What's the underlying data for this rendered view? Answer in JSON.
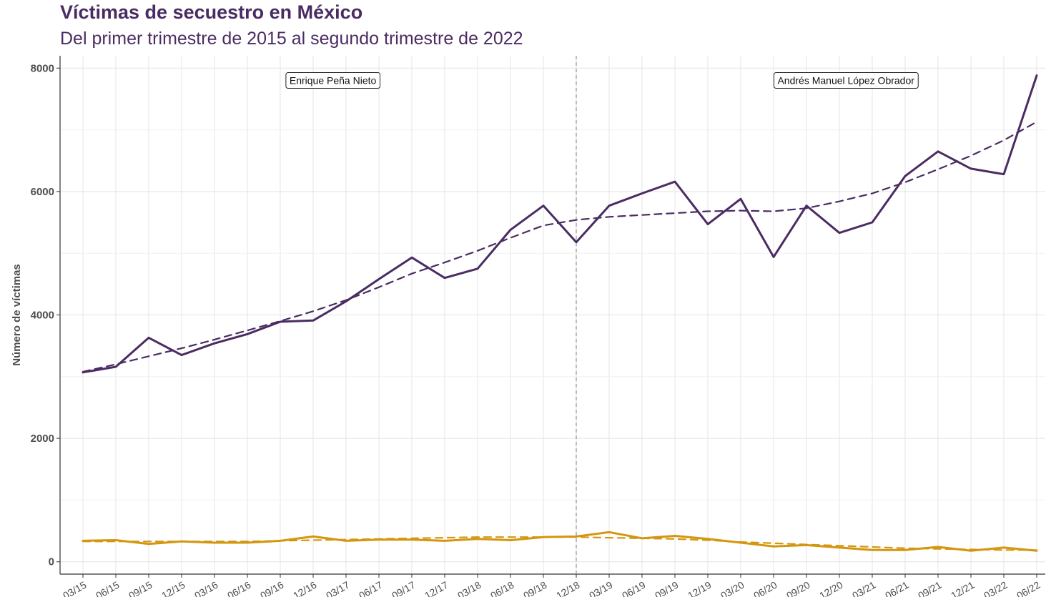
{
  "chart_data": {
    "type": "line",
    "title": "Víctimas de secuestro en México",
    "subtitle": "Del primer trimestre de 2015 al segundo trimestre de 2022",
    "xlabel": "",
    "ylabel": "Número de víctimas",
    "ylim": [
      -200,
      8200
    ],
    "yticks": [
      0,
      2000,
      4000,
      6000,
      8000
    ],
    "grid": true,
    "categories": [
      "03/15",
      "06/15",
      "09/15",
      "12/15",
      "03/16",
      "06/16",
      "09/16",
      "12/16",
      "03/17",
      "06/17",
      "09/17",
      "12/17",
      "03/18",
      "06/18",
      "09/18",
      "12/18",
      "03/19",
      "06/19",
      "09/19",
      "12/19",
      "03/20",
      "06/20",
      "09/20",
      "12/20",
      "03/21",
      "06/21",
      "09/21",
      "12/21",
      "03/22",
      "06/22"
    ],
    "series": [
      {
        "color": "#4a2c62",
        "style": "solid",
        "values": [
          3070,
          3160,
          3630,
          3350,
          3540,
          3690,
          3890,
          3910,
          4220,
          4580,
          4930,
          4600,
          4750,
          5380,
          5770,
          5180,
          5770,
          5970,
          6160,
          5470,
          5880,
          4940,
          5770,
          5330,
          5500,
          6250,
          6650,
          6370,
          6280,
          7880
        ]
      },
      {
        "color": "#4a2c62",
        "style": "dashed",
        "values": [
          3080,
          3200,
          3330,
          3460,
          3600,
          3750,
          3900,
          4060,
          4240,
          4450,
          4670,
          4850,
          5040,
          5250,
          5450,
          5540,
          5590,
          5620,
          5650,
          5680,
          5690,
          5680,
          5730,
          5840,
          5970,
          6150,
          6360,
          6580,
          6830,
          7130
        ]
      },
      {
        "color": "#d4960f",
        "style": "solid",
        "values": [
          340,
          350,
          290,
          330,
          310,
          310,
          340,
          410,
          340,
          360,
          360,
          340,
          370,
          350,
          400,
          410,
          480,
          380,
          420,
          370,
          310,
          250,
          270,
          230,
          190,
          190,
          240,
          180,
          230,
          180
        ]
      },
      {
        "color": "#d4960f",
        "style": "dashed",
        "values": [
          330,
          330,
          330,
          330,
          330,
          330,
          340,
          350,
          360,
          370,
          380,
          390,
          400,
          400,
          400,
          400,
          390,
          380,
          370,
          350,
          320,
          300,
          280,
          260,
          240,
          220,
          210,
          200,
          190,
          190
        ]
      }
    ],
    "divider_after": "12/18",
    "annotations": [
      {
        "text": "Enrique Peña Nieto",
        "x_index": 7.6,
        "y": 7800
      },
      {
        "text": "Andrés Manuel López Obrador",
        "x_index": 23.2,
        "y": 7800
      }
    ]
  }
}
